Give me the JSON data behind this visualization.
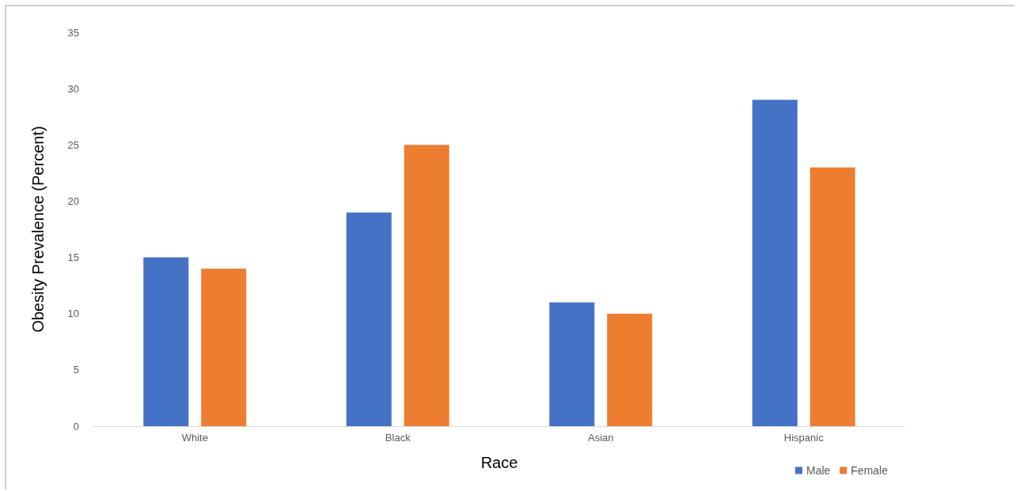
{
  "chart_data": {
    "type": "bar",
    "xlabel": "Race",
    "ylabel": "Obesity Prevalence (Percent)",
    "categories": [
      "White",
      "Black",
      "Asian",
      "Hispanic"
    ],
    "series": [
      {
        "name": "Male",
        "color": "#4472c4",
        "values": [
          15,
          19,
          11,
          29
        ]
      },
      {
        "name": "Female",
        "color": "#ed7d31",
        "values": [
          14,
          25,
          10,
          23
        ]
      }
    ],
    "ylim": [
      0,
      35
    ],
    "yticks": [
      0,
      5,
      10,
      15,
      20,
      25,
      30,
      35
    ],
    "grid": false,
    "legend": "bottom right"
  }
}
